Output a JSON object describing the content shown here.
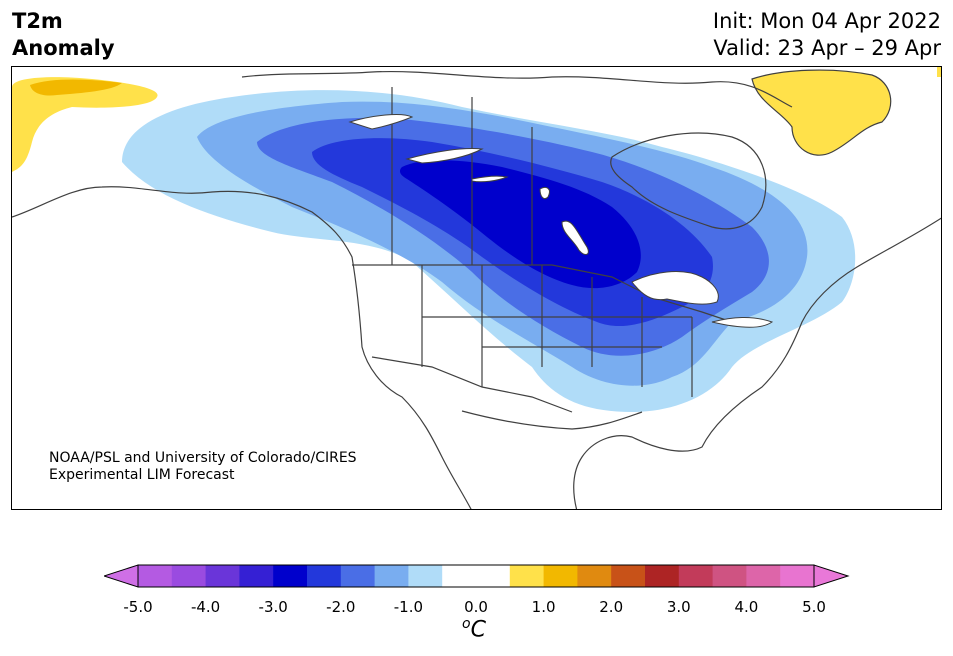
{
  "header": {
    "title_line1": "T2m",
    "title_line2": "Anomaly",
    "init": "Init: Mon 04 Apr 2022",
    "valid": "Valid: 23 Apr – 29 Apr"
  },
  "credit": {
    "line1": "NOAA/PSL and University of Colorado/CIRES",
    "line2": "Experimental LIM Forecast"
  },
  "colorbar": {
    "unit_base": "C",
    "unit_super": "o",
    "tick_labels": [
      "-5.0",
      "-4.0",
      "-3.0",
      "-2.0",
      "-1.0",
      "0.0",
      "1.0",
      "2.0",
      "3.0",
      "4.0",
      "5.0"
    ],
    "colors": [
      "#b45ae2",
      "#9a4be0",
      "#6a35d9",
      "#3520d4",
      "#0000cc",
      "#2338db",
      "#4a6ee6",
      "#79adf0",
      "#b0dcf8",
      "#ffffff",
      "#ffffff",
      "#ffe14a",
      "#f2b800",
      "#e08a10",
      "#c85218",
      "#ad2424",
      "#c23b5a",
      "#cf5382",
      "#dd65a9",
      "#e874d0"
    ],
    "under_color": "#cf6fe6",
    "over_color": "#e978d8"
  },
  "legend_levels": {
    "cold_strongest": "#0000cc",
    "cold_strong": "#2338db",
    "cold_moderate": "#4a6ee6",
    "cold_light": "#79adf0",
    "cold_weak": "#b0dcf8",
    "warm_weak": "#ffe14a",
    "warm_light": "#f2b800"
  }
}
